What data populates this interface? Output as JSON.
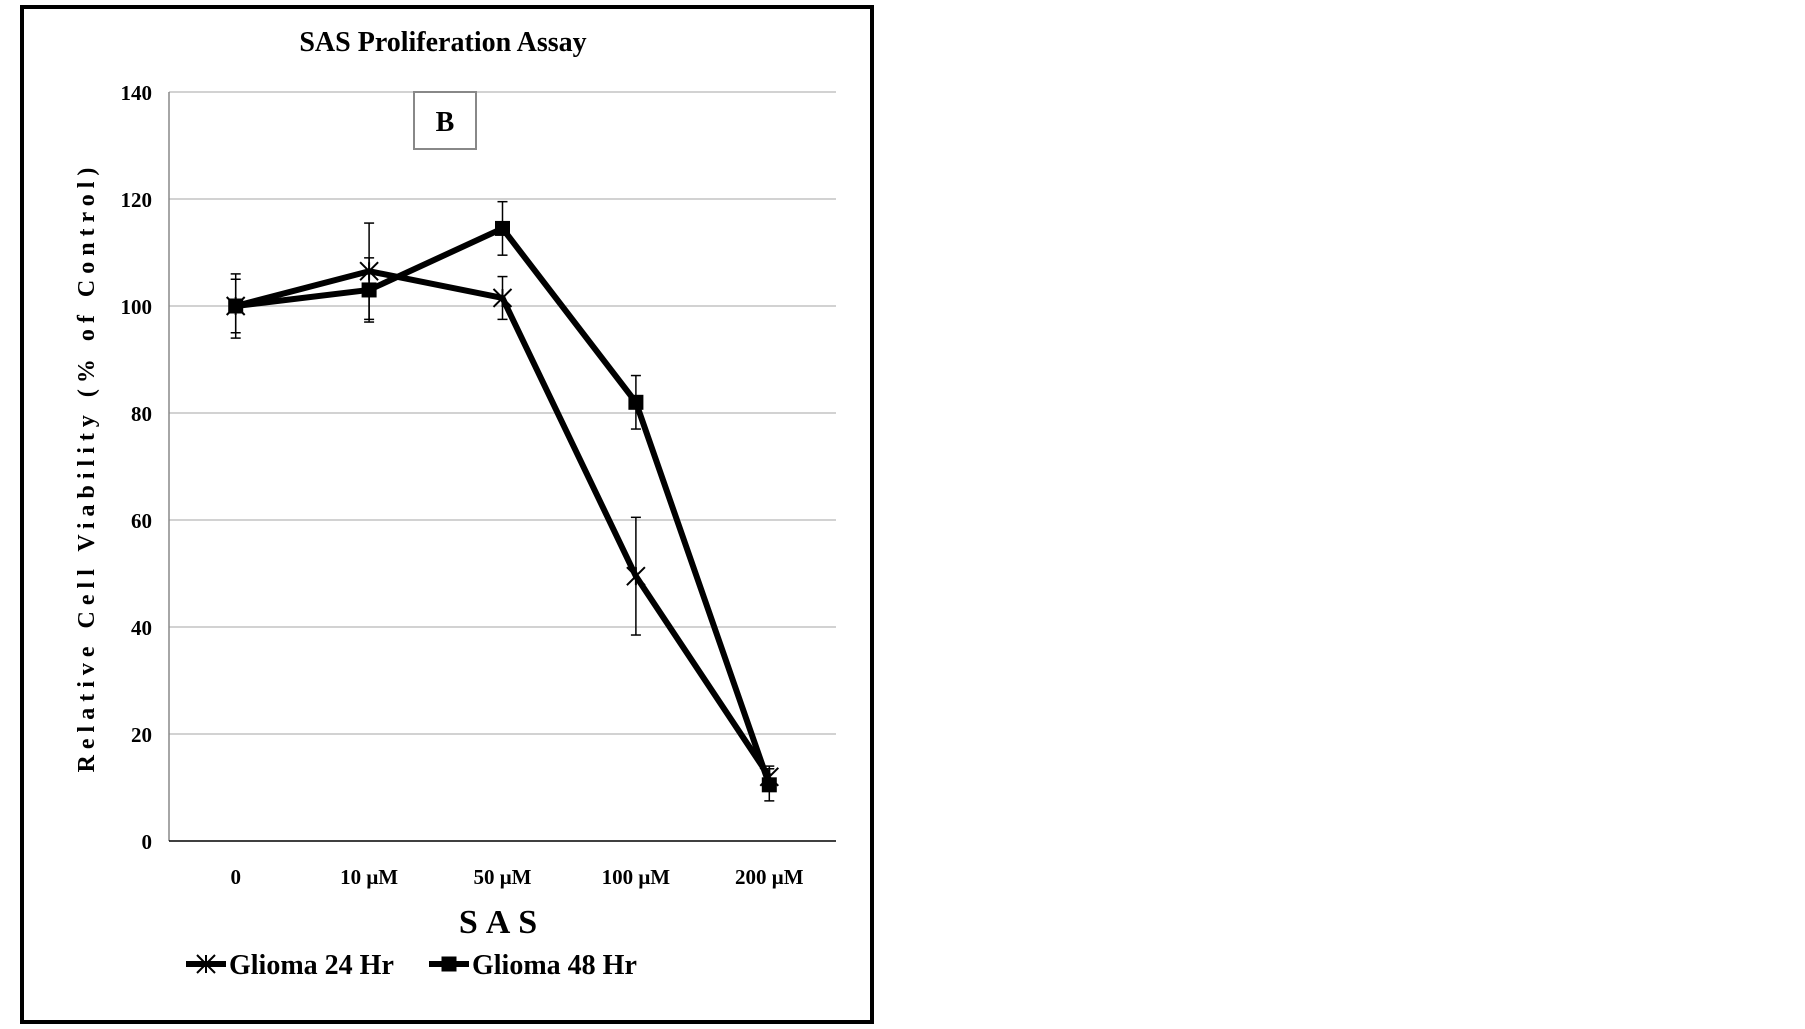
{
  "chart_data": {
    "type": "line",
    "title": "SAS Proliferation Assay",
    "panel_label": "B",
    "xlabel": "SAS",
    "ylabel": "Relative Cell Viability (% of Control)",
    "categories": [
      "0",
      "10 μM",
      "50 μM",
      "100 μM",
      "200 μM"
    ],
    "ylim": [
      0,
      140
    ],
    "yticks": [
      0,
      20,
      40,
      60,
      80,
      100,
      120,
      140
    ],
    "grid": true,
    "legend_position": "bottom",
    "series": [
      {
        "name": "Glioma 24 Hr",
        "marker": "star",
        "values": [
          100,
          106.5,
          101.5,
          49.5,
          12
        ],
        "errors": [
          6,
          9,
          4,
          11,
          2
        ]
      },
      {
        "name": "Glioma 48 Hr",
        "marker": "square",
        "values": [
          100,
          103,
          114.5,
          82,
          10.5
        ],
        "errors": [
          5,
          6,
          5,
          5,
          3
        ]
      }
    ]
  }
}
